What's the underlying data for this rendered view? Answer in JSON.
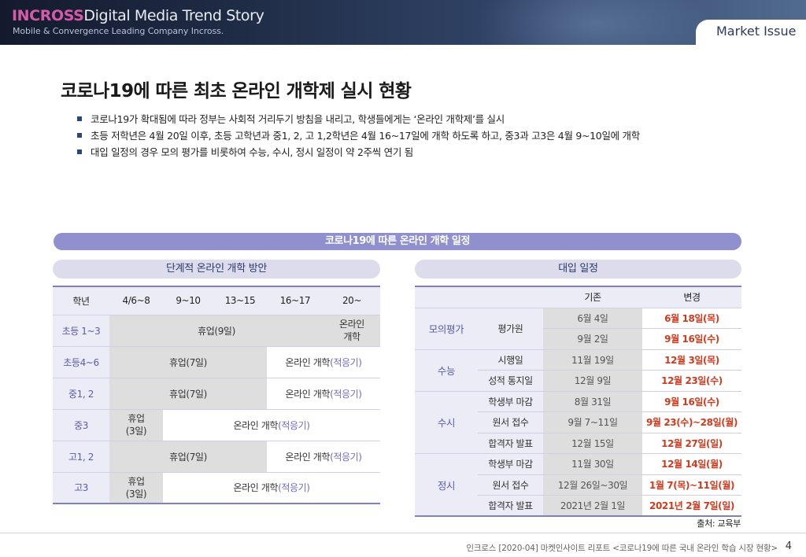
{
  "header": {
    "brand_accent": "INCROSS",
    "brand_rest": "Digital Media Trend Story",
    "tagline": "Mobile & Convergence Leading Company Incross.",
    "section_tab": "Market Issue"
  },
  "title": "코로나19에 따른 최초 온라인 개학제 실시 현황",
  "bullets": [
    "코로나19가 확대됨에 따라 정부는 사회적 거리두기 방침을 내리고, 학생들에게는 ‘온라인 개학제’를 실시",
    "초등 저학년은 4월 20일 이후, 초등 고학년과 중1, 2, 고 1,2학년은 4월 16~17일에 개학 하도록 하고, 중3과 고3은 4월 9~10일에 개학",
    "대입 일정의 경우 모의 평가를 비롯하여 수능, 수시, 정시 일정이 약 2주씩 연기 됨"
  ],
  "banner": "코로나19에 따른 온라인 개학 일정",
  "left": {
    "heading": "단계적 온라인 개학 방안",
    "columns": [
      "학년",
      "4/6~8",
      "9~10",
      "13~15",
      "16~17",
      "20~"
    ],
    "rows": [
      {
        "label": "초등 1~3",
        "break": "휴업(9일)",
        "online": "온라인\n개학"
      },
      {
        "label": "초등4~6",
        "break": "휴업(7일)",
        "online": "온라인 개학",
        "note": "(적응기)"
      },
      {
        "label": "중1, 2",
        "break": "휴업(7일)",
        "online": "온라인 개학",
        "note": "(적응기)"
      },
      {
        "label": "중3",
        "break": "휴업\n(3일)",
        "online": "온라인 개학",
        "note": "(적응기)"
      },
      {
        "label": "고1, 2",
        "break": "휴업(7일)",
        "online": "온라인 개학",
        "note": "(적응기)"
      },
      {
        "label": "고3",
        "break": "휴업\n(3일)",
        "online": "온라인 개학",
        "note": "(적응기)"
      }
    ]
  },
  "right": {
    "heading": "대입 일정",
    "columns": [
      "기존",
      "변경"
    ],
    "groups": [
      {
        "category": "모의평가",
        "rows": [
          {
            "item": "평가원",
            "orig": "6월 4일",
            "new": "6월 18일(목)"
          },
          {
            "item": "",
            "orig": "9월 2일",
            "new": "9월 16일(수)"
          }
        ]
      },
      {
        "category": "수능",
        "rows": [
          {
            "item": "시행일",
            "orig": "11월 19일",
            "new": "12월 3일(목)"
          },
          {
            "item": "성적 통지일",
            "orig": "12월 9일",
            "new": "12월 23일(수)"
          }
        ]
      },
      {
        "category": "수시",
        "rows": [
          {
            "item": "학생부 마감",
            "orig": "8월 31일",
            "new": "9월 16일(수)"
          },
          {
            "item": "원서 접수",
            "orig": "9월 7~11일",
            "new": "9월 23(수)~28일(월)"
          },
          {
            "item": "합격자 발표",
            "orig": "12월 15일",
            "new": "12월 27일(일)"
          }
        ]
      },
      {
        "category": "정시",
        "rows": [
          {
            "item": "학생부 마감",
            "orig": "11월 30일",
            "new": "12월 14일(월)"
          },
          {
            "item": "원서 접수",
            "orig": "12월 26일~30일",
            "new": "1월 7(목)~11일(월)"
          },
          {
            "item": "합격자 발표",
            "orig": "2021년 2월 1일",
            "new": "2021년 2월 7일(일)"
          }
        ]
      }
    ]
  },
  "source": "출처: 교육부",
  "footer": "인크로스 [2020-04] 마켓인사이트 리포트 <코로나19에 따른 국내 온라인 학습 시장 현황>",
  "page_number": "4",
  "colors": {
    "accent_pink": "#d65aa8",
    "purple": "#8f90cd",
    "change_red": "#d23a1e",
    "header_navy": "#1f2c46"
  }
}
